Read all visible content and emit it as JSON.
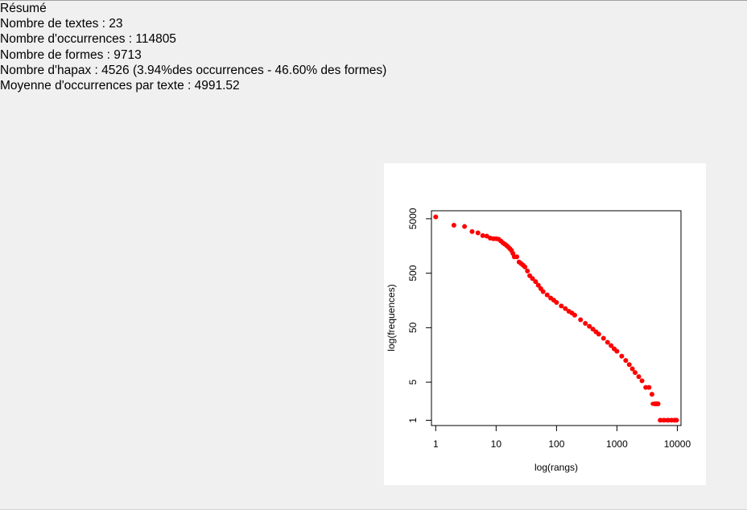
{
  "summary": {
    "title": "Résumé",
    "lines": [
      "Nombre de textes : 23",
      "Nombre d'occurrences : 114805",
      "Nombre de formes : 9713",
      "Nombre d'hapax : 4526 (3.94%des occurrences - 46.60% des formes)",
      "Moyenne d'occurrences par texte : 4991.52"
    ]
  },
  "chart_data": {
    "type": "scatter",
    "title": "",
    "xlabel": "log(rangs)",
    "ylabel": "log(frequences)",
    "x_scale": "log",
    "y_scale": "log",
    "x_ticks": [
      "1",
      "10",
      "100",
      "1000",
      "10000"
    ],
    "y_ticks": [
      "1",
      "5",
      "50",
      "500",
      "5000"
    ],
    "xlim": [
      0.85,
      11500
    ],
    "ylim": [
      0.8,
      7000
    ],
    "grid": false,
    "marker_color": "#ff0000",
    "series": [
      {
        "x": [
          1,
          2,
          3,
          4,
          5,
          6,
          7,
          8,
          9,
          10,
          11,
          12,
          13,
          14,
          15,
          16,
          17,
          18,
          19,
          20,
          22,
          24,
          26,
          28,
          30,
          33,
          36,
          40,
          45,
          50,
          55,
          60,
          70,
          80,
          90,
          100,
          120,
          140,
          160,
          180,
          200,
          250,
          300,
          350,
          400,
          450,
          500,
          600,
          700,
          800,
          900,
          1000,
          1200,
          1400,
          1600,
          1800,
          2000,
          2300,
          2600,
          3000,
          3400,
          3800,
          4200,
          4500,
          4800,
          5200,
          6000,
          7000,
          8000,
          9000,
          9713
        ],
        "y": [
          5400,
          3800,
          3600,
          2900,
          2750,
          2450,
          2400,
          2200,
          2150,
          2150,
          2100,
          1950,
          1800,
          1700,
          1600,
          1500,
          1400,
          1300,
          1150,
          1000,
          1000,
          800,
          750,
          700,
          650,
          550,
          450,
          400,
          350,
          300,
          260,
          230,
          200,
          175,
          160,
          145,
          125,
          112,
          100,
          93,
          85,
          70,
          60,
          53,
          47,
          42,
          38,
          32,
          27,
          23.5,
          20.5,
          18.5,
          15,
          12.5,
          10.5,
          8.8,
          7.5,
          6.3,
          5.3,
          4,
          4,
          3,
          2,
          2,
          2,
          1,
          1,
          1,
          1,
          1,
          1
        ]
      }
    ]
  }
}
